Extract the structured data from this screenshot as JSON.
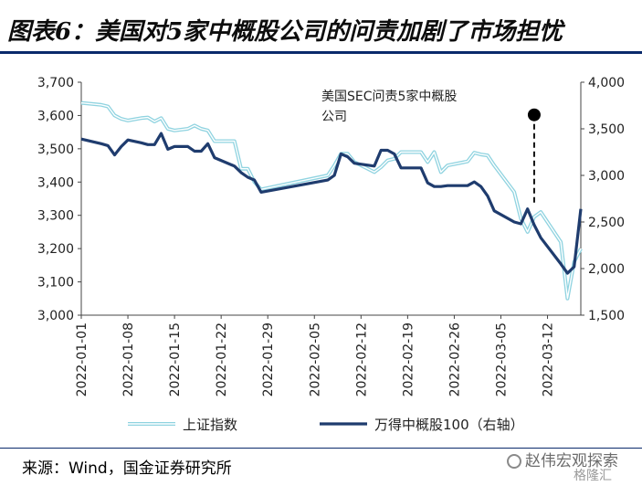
{
  "header": {
    "title": "图表6：美国对5家中概股公司的问责加剧了市场担忧"
  },
  "footer": {
    "source": "来源：Wind，国金证券研究所",
    "watermark": "赵伟宏观探索",
    "watermark2": "格隆汇"
  },
  "colors": {
    "series1": "#8fd3e0",
    "series1_inner": "#ffffff",
    "series2": "#1f3c6e",
    "title_rule": "#0a2a6b"
  },
  "chart_data": {
    "type": "line",
    "title": "",
    "x": [
      "2022-01-01",
      "2022-01-08",
      "2022-01-15",
      "2022-01-22",
      "2022-01-29",
      "2022-02-05",
      "2022-02-12",
      "2022-02-19",
      "2022-02-26",
      "2022-03-05",
      "2022-03-12"
    ],
    "x_tick_labels": [
      "2022-01-01",
      "2022-01-08",
      "2022-01-15",
      "2022-01-22",
      "2022-01-29",
      "2022-02-05",
      "2022-02-12",
      "2022-02-19",
      "2022-02-26",
      "2022-03-05",
      "2022-03-12"
    ],
    "left_axis": {
      "ylim": [
        3000,
        3700
      ],
      "ticks": [
        "3,000",
        "3,100",
        "3,200",
        "3,300",
        "3,400",
        "3,500",
        "3,600",
        "3,700"
      ]
    },
    "right_axis": {
      "ylim": [
        1500,
        4000
      ],
      "ticks": [
        "1,500",
        "2,000",
        "2,500",
        "3,000",
        "3,500",
        "4,000"
      ]
    },
    "grid": false,
    "legend_position": "bottom",
    "annotation": {
      "lines": [
        "美国SEC问责5家中概股",
        "公司"
      ],
      "date": "2022-03-10",
      "value_right_axis": 3650
    },
    "series": [
      {
        "name": "上证指数",
        "axis": "left",
        "points": [
          [
            "2022-01-01",
            3638
          ],
          [
            "2022-01-04",
            3632
          ],
          [
            "2022-01-05",
            3627
          ],
          [
            "2022-01-06",
            3600
          ],
          [
            "2022-01-07",
            3590
          ],
          [
            "2022-01-08",
            3585
          ],
          [
            "2022-01-10",
            3592
          ],
          [
            "2022-01-11",
            3594
          ],
          [
            "2022-01-12",
            3582
          ],
          [
            "2022-01-13",
            3592
          ],
          [
            "2022-01-14",
            3560
          ],
          [
            "2022-01-15",
            3555
          ],
          [
            "2022-01-17",
            3560
          ],
          [
            "2022-01-18",
            3570
          ],
          [
            "2022-01-19",
            3560
          ],
          [
            "2022-01-20",
            3555
          ],
          [
            "2022-01-21",
            3523
          ],
          [
            "2022-01-22",
            3523
          ],
          [
            "2022-01-24",
            3523
          ],
          [
            "2022-01-25",
            3440
          ],
          [
            "2022-01-26",
            3440
          ],
          [
            "2022-01-27",
            3400
          ],
          [
            "2022-01-28",
            3378
          ],
          [
            "2022-02-07",
            3420
          ],
          [
            "2022-02-08",
            3450
          ],
          [
            "2022-02-09",
            3485
          ],
          [
            "2022-02-10",
            3485
          ],
          [
            "2022-02-11",
            3460
          ],
          [
            "2022-02-14",
            3430
          ],
          [
            "2022-02-15",
            3445
          ],
          [
            "2022-02-16",
            3465
          ],
          [
            "2022-02-17",
            3470
          ],
          [
            "2022-02-18",
            3490
          ],
          [
            "2022-02-21",
            3490
          ],
          [
            "2022-02-22",
            3460
          ],
          [
            "2022-02-23",
            3490
          ],
          [
            "2022-02-24",
            3430
          ],
          [
            "2022-02-25",
            3450
          ],
          [
            "2022-02-28",
            3462
          ],
          [
            "2022-03-01",
            3488
          ],
          [
            "2022-03-02",
            3483
          ],
          [
            "2022-03-03",
            3480
          ],
          [
            "2022-03-04",
            3450
          ],
          [
            "2022-03-07",
            3370
          ],
          [
            "2022-03-08",
            3290
          ],
          [
            "2022-03-09",
            3250
          ],
          [
            "2022-03-10",
            3295
          ],
          [
            "2022-03-11",
            3310
          ],
          [
            "2022-03-14",
            3220
          ],
          [
            "2022-03-15",
            3050
          ],
          [
            "2022-03-16",
            3160
          ],
          [
            "2022-03-17",
            3200
          ]
        ]
      },
      {
        "name": "万得中概股100（右轴）",
        "axis": "right",
        "points": [
          [
            "2022-01-01",
            3390
          ],
          [
            "2022-01-04",
            3340
          ],
          [
            "2022-01-05",
            3320
          ],
          [
            "2022-01-06",
            3220
          ],
          [
            "2022-01-07",
            3310
          ],
          [
            "2022-01-08",
            3380
          ],
          [
            "2022-01-10",
            3350
          ],
          [
            "2022-01-11",
            3330
          ],
          [
            "2022-01-12",
            3330
          ],
          [
            "2022-01-13",
            3450
          ],
          [
            "2022-01-14",
            3280
          ],
          [
            "2022-01-15",
            3310
          ],
          [
            "2022-01-17",
            3310
          ],
          [
            "2022-01-18",
            3260
          ],
          [
            "2022-01-19",
            3260
          ],
          [
            "2022-01-20",
            3340
          ],
          [
            "2022-01-21",
            3190
          ],
          [
            "2022-01-24",
            3100
          ],
          [
            "2022-01-25",
            3030
          ],
          [
            "2022-01-26",
            2980
          ],
          [
            "2022-01-27",
            2950
          ],
          [
            "2022-01-28",
            2820
          ],
          [
            "2022-02-07",
            2950
          ],
          [
            "2022-02-08",
            3000
          ],
          [
            "2022-02-09",
            3230
          ],
          [
            "2022-02-10",
            3200
          ],
          [
            "2022-02-11",
            3130
          ],
          [
            "2022-02-14",
            3100
          ],
          [
            "2022-02-15",
            3270
          ],
          [
            "2022-02-16",
            3270
          ],
          [
            "2022-02-17",
            3230
          ],
          [
            "2022-02-18",
            3080
          ],
          [
            "2022-02-21",
            3080
          ],
          [
            "2022-02-22",
            2920
          ],
          [
            "2022-02-23",
            2880
          ],
          [
            "2022-02-24",
            2880
          ],
          [
            "2022-02-25",
            2890
          ],
          [
            "2022-02-28",
            2890
          ],
          [
            "2022-03-01",
            2930
          ],
          [
            "2022-03-02",
            2880
          ],
          [
            "2022-03-03",
            2780
          ],
          [
            "2022-03-04",
            2620
          ],
          [
            "2022-03-07",
            2500
          ],
          [
            "2022-03-08",
            2480
          ],
          [
            "2022-03-09",
            2640
          ],
          [
            "2022-03-10",
            2470
          ],
          [
            "2022-03-11",
            2330
          ],
          [
            "2022-03-14",
            2050
          ],
          [
            "2022-03-15",
            1950
          ],
          [
            "2022-03-16",
            2020
          ],
          [
            "2022-03-17",
            2640
          ]
        ]
      }
    ]
  }
}
